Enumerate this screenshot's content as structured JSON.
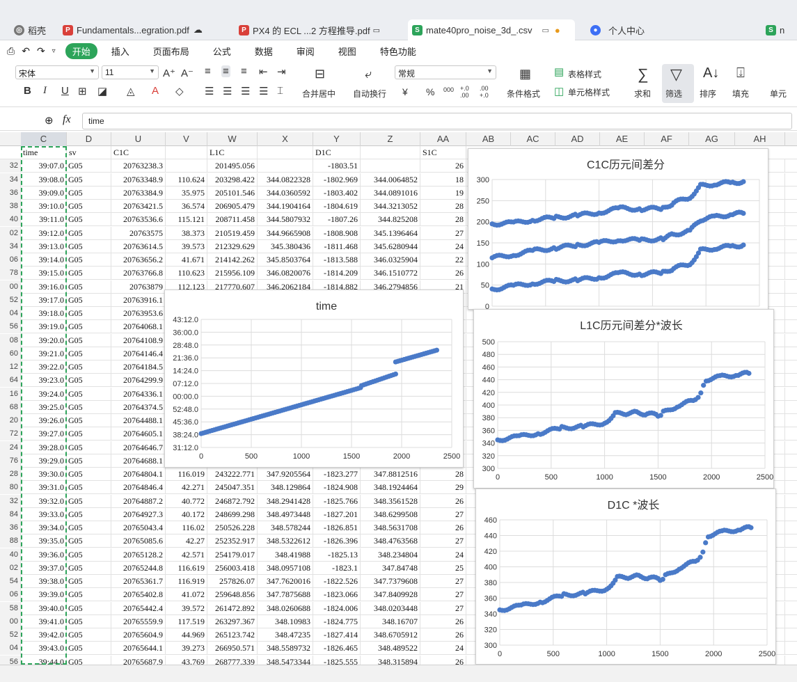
{
  "tabs": [
    {
      "label": "稻壳",
      "color": "#6a6a6a",
      "icon": "daoke-icon"
    },
    {
      "label": "Fundamentals...egration.pdf",
      "color": "#d9403a",
      "icon": "pdf-icon"
    },
    {
      "label": "PX4 的 ECL ...2 方程推导.pdf",
      "color": "#d9403a",
      "icon": "pdf-icon"
    },
    {
      "label": "mate40pro_noise_3d_.csv",
      "color": "#2da45a",
      "icon": "sheet-icon"
    },
    {
      "label": "个人中心",
      "color": "#3d6ff5",
      "icon": "user-icon"
    },
    {
      "label": "n",
      "color": "#2da45a",
      "icon": "sheet-icon"
    }
  ],
  "menu": {
    "active": "开始",
    "items": [
      "插入",
      "页面布局",
      "公式",
      "数据",
      "审阅",
      "视图",
      "特色功能"
    ]
  },
  "ribbon": {
    "font_name": "宋体",
    "font_size": "11",
    "number_format": "常规",
    "merge": "合并居中",
    "wrap": "自动换行",
    "cond_format": "条件格式",
    "table_style": "表格样式",
    "cell_style": "单元格样式",
    "sum": "求和",
    "filter": "筛选",
    "sort": "排序",
    "fill": "填充",
    "cell": "单元",
    "currency": "¥",
    "percent": "%",
    "thousands": "000",
    "inc_dec": "+.0 .00",
    "dec_dec": ".00 +.0"
  },
  "formula_bar": {
    "fx": "fx",
    "content": "time"
  },
  "columns": [
    "C",
    "D",
    "U",
    "V",
    "W",
    "X",
    "Y",
    "Z",
    "AA",
    "AB",
    "AC",
    "AD",
    "AE",
    "AF",
    "AG",
    "AH"
  ],
  "header_row": [
    "time",
    "sv",
    "C1C",
    "",
    "L1C",
    "",
    "D1C",
    "",
    "S1C"
  ],
  "rows": [
    [
      "32",
      "39:07.0",
      "G05",
      "20763238.3",
      "",
      "201495.056",
      "",
      "-1803.51",
      "",
      "26"
    ],
    [
      "34",
      "39:08.0",
      "G05",
      "20763348.9",
      "110.624",
      "203298.422",
      "344.0822328",
      "-1802.969",
      "344.0064852",
      "18"
    ],
    [
      "36",
      "39:09.0",
      "G05",
      "20763384.9",
      "35.975",
      "205101.546",
      "344.0360592",
      "-1803.402",
      "344.0891016",
      "19"
    ],
    [
      "38",
      "39:10.0",
      "G05",
      "20763421.5",
      "36.574",
      "206905.479",
      "344.1904164",
      "-1804.619",
      "344.3213052",
      "28"
    ],
    [
      "40",
      "39:11.0",
      "G05",
      "20763536.6",
      "115.121",
      "208711.458",
      "344.5807932",
      "-1807.26",
      "344.825208",
      "28"
    ],
    [
      "02",
      "39:12.0",
      "G05",
      "20763575",
      "38.373",
      "210519.459",
      "344.9665908",
      "-1808.908",
      "345.1396464",
      "27"
    ],
    [
      "34",
      "39:13.0",
      "G05",
      "20763614.5",
      "39.573",
      "212329.629",
      "345.380436",
      "-1811.468",
      "345.6280944",
      "24"
    ],
    [
      "06",
      "39:14.0",
      "G05",
      "20763656.2",
      "41.671",
      "214142.262",
      "345.8503764",
      "-1813.588",
      "346.0325904",
      "22"
    ],
    [
      "78",
      "39:15.0",
      "G05",
      "20763766.8",
      "110.623",
      "215956.109",
      "346.0820076",
      "-1814.209",
      "346.1510772",
      "26"
    ],
    [
      "00",
      "39:16.0",
      "G05",
      "20763879",
      "112.123",
      "217770.607",
      "346.2062184",
      "-1814.882",
      "346.2794856",
      "21"
    ],
    [
      "52",
      "39:17.0",
      "G05",
      "20763916.1",
      "",
      "",
      "",
      "",
      "",
      ""
    ],
    [
      "04",
      "39:18.0",
      "G05",
      "20763953.6",
      "",
      "",
      "",
      "",
      "",
      ""
    ],
    [
      "56",
      "39:19.0",
      "G05",
      "20764068.1",
      "",
      "",
      "",
      "",
      "",
      ""
    ],
    [
      "08",
      "39:20.0",
      "G05",
      "20764108.9",
      "",
      "",
      "",
      "",
      "",
      ""
    ],
    [
      "60",
      "39:21.0",
      "G05",
      "20764146.4",
      "",
      "",
      "",
      "",
      "",
      ""
    ],
    [
      "12",
      "39:22.0",
      "G05",
      "20764184.5",
      "",
      "",
      "",
      "",
      "",
      ""
    ],
    [
      "64",
      "39:23.0",
      "G05",
      "20764299.9",
      "",
      "",
      "",
      "",
      "",
      ""
    ],
    [
      "16",
      "39:24.0",
      "G05",
      "20764336.1",
      "",
      "",
      "",
      "",
      "",
      ""
    ],
    [
      "68",
      "39:25.0",
      "G05",
      "20764374.5",
      "",
      "",
      "",
      "",
      "",
      ""
    ],
    [
      "20",
      "39:26.0",
      "G05",
      "20764488.1",
      "",
      "",
      "",
      "",
      "",
      ""
    ],
    [
      "72",
      "39:27.0",
      "G05",
      "20764605.1",
      "",
      "",
      "",
      "",
      "",
      ""
    ],
    [
      "24",
      "39:28.0",
      "G05",
      "20764646.7",
      "",
      "",
      "",
      "",
      "",
      ""
    ],
    [
      "76",
      "39:29.0",
      "G05",
      "20764688.1",
      "",
      "",
      "",
      "",
      "",
      ""
    ],
    [
      "28",
      "39:30.0",
      "G05",
      "20764804.1",
      "116.019",
      "243222.771",
      "347.9205564",
      "-1823.277",
      "347.8812516",
      "28"
    ],
    [
      "80",
      "39:31.0",
      "G05",
      "20764846.4",
      "42.271",
      "245047.351",
      "348.129864",
      "-1824.908",
      "348.1924464",
      "29"
    ],
    [
      "32",
      "39:32.0",
      "G05",
      "20764887.2",
      "40.772",
      "246872.792",
      "348.2941428",
      "-1825.766",
      "348.3561528",
      "26"
    ],
    [
      "84",
      "39:33.0",
      "G05",
      "20764927.3",
      "40.172",
      "248699.298",
      "348.4973448",
      "-1827.201",
      "348.6299508",
      "27"
    ],
    [
      "36",
      "39:34.0",
      "G05",
      "20765043.4",
      "116.02",
      "250526.228",
      "348.578244",
      "-1826.851",
      "348.5631708",
      "26"
    ],
    [
      "88",
      "39:35.0",
      "G05",
      "20765085.6",
      "42.27",
      "252352.917",
      "348.5322612",
      "-1826.396",
      "348.4763568",
      "27"
    ],
    [
      "40",
      "39:36.0",
      "G05",
      "20765128.2",
      "42.571",
      "254179.017",
      "348.41988",
      "-1825.13",
      "348.234804",
      "24"
    ],
    [
      "02",
      "39:37.0",
      "G05",
      "20765244.8",
      "116.619",
      "256003.418",
      "348.0957108",
      "-1823.1",
      "347.84748",
      "25"
    ],
    [
      "54",
      "39:38.0",
      "G05",
      "20765361.7",
      "116.919",
      "257826.07",
      "347.7620016",
      "-1822.526",
      "347.7379608",
      "27"
    ],
    [
      "06",
      "39:39.0",
      "G05",
      "20765402.8",
      "41.072",
      "259648.856",
      "347.7875688",
      "-1823.066",
      "347.8409928",
      "27"
    ],
    [
      "58",
      "39:40.0",
      "G05",
      "20765442.4",
      "39.572",
      "261472.892",
      "348.0260688",
      "-1824.006",
      "348.0203448",
      "27"
    ],
    [
      "00",
      "39:41.0",
      "G05",
      "20765559.9",
      "117.519",
      "263297.367",
      "348.10983",
      "-1824.775",
      "348.16707",
      "26"
    ],
    [
      "52",
      "39:42.0",
      "G05",
      "20765604.9",
      "44.969",
      "265123.742",
      "348.47235",
      "-1827.414",
      "348.6705912",
      "26"
    ],
    [
      "04",
      "39:43.0",
      "G05",
      "20765644.1",
      "39.273",
      "266950.571",
      "348.5589732",
      "-1826.465",
      "348.489522",
      "24"
    ],
    [
      "56",
      "39:44.0",
      "G05",
      "20765687.9",
      "43.769",
      "268777.339",
      "348.5473344",
      "-1825.555",
      "348.315894",
      "26"
    ]
  ],
  "chart_data": [
    {
      "type": "scatter",
      "title": "C1C历元间差分",
      "xlim": [
        0,
        2500
      ],
      "ylim": [
        0,
        300
      ],
      "yticks": [
        "300",
        "250",
        "200",
        "150",
        "100",
        "50",
        "0"
      ],
      "xticks": [],
      "series": [
        {
          "x": [
            0,
            200,
            400,
            600,
            800,
            1000,
            1200,
            1400,
            1600,
            1700,
            1850,
            1950,
            2100,
            2250,
            2350
          ],
          "y": [
            195,
            197,
            205,
            210,
            215,
            222,
            232,
            230,
            232,
            245,
            258,
            285,
            290,
            293,
            295
          ]
        },
        {
          "x": [
            0,
            200,
            400,
            600,
            800,
            1000,
            1200,
            1400,
            1600,
            1700,
            1850,
            1950,
            2100,
            2250,
            2350
          ],
          "y": [
            115,
            122,
            132,
            138,
            145,
            150,
            158,
            156,
            160,
            170,
            178,
            205,
            212,
            218,
            220
          ]
        },
        {
          "x": [
            0,
            200,
            400,
            600,
            800,
            1000,
            1200,
            1400,
            1600,
            1700,
            1850,
            1950,
            2100,
            2250,
            2350
          ],
          "y": [
            40,
            48,
            55,
            60,
            62,
            68,
            78,
            76,
            80,
            90,
            100,
            132,
            138,
            142,
            145
          ]
        }
      ]
    },
    {
      "type": "scatter",
      "title": "time",
      "xlim": [
        0,
        2500
      ],
      "xticks": [
        "0",
        "500",
        "1000",
        "1500",
        "2000",
        "2500"
      ],
      "yticks": [
        "43:12.0",
        "36:00.0",
        "28:48.0",
        "21:36.0",
        "14:24.0",
        "07:12.0",
        "00:00.0",
        "52:48.0",
        "45:36.0",
        "38:24.0",
        "31:12.0"
      ],
      "series": [
        {
          "x": [
            0,
            500,
            1000,
            1500,
            1590
          ],
          "y": [
            39,
            47.1,
            55.2,
            63.3,
            64.8
          ]
        },
        {
          "x": [
            1600,
            1940
          ],
          "y": [
            66.0,
            72.5
          ]
        },
        {
          "x": [
            1940,
            2350
          ],
          "y": [
            79.3,
            85.9
          ]
        }
      ]
    },
    {
      "type": "scatter",
      "title": "L1C历元间差分*波长",
      "xlim": [
        0,
        2500
      ],
      "ylim": [
        300,
        500
      ],
      "xticks": [
        "0",
        "500",
        "1000",
        "1500",
        "2000",
        "2500"
      ],
      "yticks": [
        "500",
        "480",
        "460",
        "440",
        "420",
        "400",
        "380",
        "360",
        "340",
        "320",
        "300"
      ],
      "series": [
        {
          "x": [
            0,
            200,
            400,
            600,
            800,
            1000,
            1100,
            1200,
            1300,
            1400,
            1500,
            1550,
            1700,
            1850,
            1900,
            1950,
            2100,
            2250,
            2350
          ],
          "y": [
            345,
            350,
            356,
            364,
            366,
            372,
            386,
            387,
            388,
            386,
            384,
            388,
            400,
            408,
            418,
            440,
            445,
            448,
            450
          ]
        }
      ]
    },
    {
      "type": "scatter",
      "title": "D1C *波长",
      "xlim": [
        0,
        2500
      ],
      "ylim": [
        300,
        460
      ],
      "xticks": [
        "0",
        "500",
        "1000",
        "1500",
        "2000",
        "2500"
      ],
      "yticks": [
        "460",
        "440",
        "420",
        "400",
        "380",
        "360",
        "340",
        "320",
        "300"
      ],
      "series": [
        {
          "x": [
            0,
            200,
            400,
            600,
            800,
            1000,
            1100,
            1200,
            1300,
            1400,
            1500,
            1550,
            1700,
            1850,
            1900,
            1950,
            2100,
            2250,
            2350
          ],
          "y": [
            345,
            350,
            356,
            364,
            366,
            372,
            386,
            387,
            388,
            386,
            384,
            388,
            400,
            408,
            418,
            440,
            445,
            448,
            450
          ]
        }
      ]
    }
  ]
}
